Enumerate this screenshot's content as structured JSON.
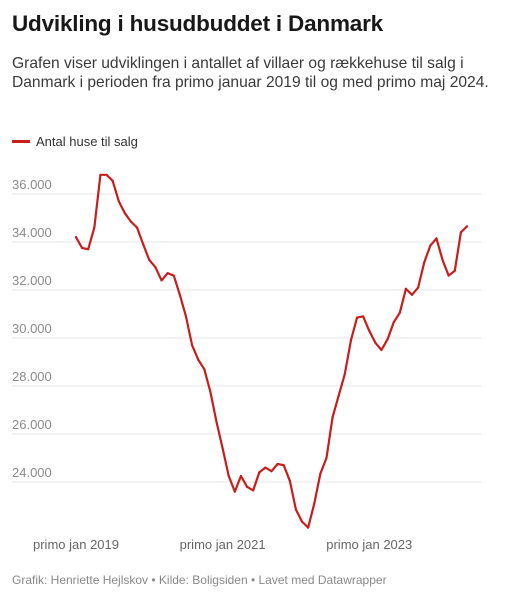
{
  "title": "Udvikling i husudbuddet i Danmark",
  "description": "Grafen viser udviklingen i antallet af villaer og rækkehuse til salg i Danmark i perioden fra primo januar 2019 til og med primo maj 2024.",
  "footer": "Grafik: Henriette Hejlskov • Kilde: Boligsiden • Lavet med Datawrapper",
  "colors": {
    "line": "#c71e1d",
    "grid": "#e4e4e4"
  },
  "chart_data": {
    "type": "line",
    "title": "Udvikling i husudbuddet i Danmark",
    "xlabel": "",
    "ylabel": "",
    "ylim": [
      22000,
      37000
    ],
    "y_ticks": [
      24000,
      26000,
      28000,
      30000,
      32000,
      34000,
      36000
    ],
    "y_tick_labels": [
      "24.000",
      "26.000",
      "28.000",
      "30.000",
      "32.000",
      "34.000",
      "36.000"
    ],
    "x_ticks": [
      "2019-01",
      "2021-01",
      "2023-01"
    ],
    "x_tick_labels": [
      "primo jan 2019",
      "primo jan 2021",
      "primo jan 2023"
    ],
    "grid": true,
    "legend_position": "top-left",
    "series": [
      {
        "name": "Antal huse til salg",
        "color": "#c71e1d",
        "x": [
          "2019-01",
          "2019-02",
          "2019-03",
          "2019-04",
          "2019-05",
          "2019-06",
          "2019-07",
          "2019-08",
          "2019-09",
          "2019-10",
          "2019-11",
          "2019-12",
          "2020-01",
          "2020-02",
          "2020-03",
          "2020-04",
          "2020-05",
          "2020-06",
          "2020-07",
          "2020-08",
          "2020-09",
          "2020-10",
          "2020-11",
          "2020-12",
          "2021-01",
          "2021-02",
          "2021-03",
          "2021-04",
          "2021-05",
          "2021-06",
          "2021-07",
          "2021-08",
          "2021-09",
          "2021-10",
          "2021-11",
          "2021-12",
          "2022-01",
          "2022-02",
          "2022-03",
          "2022-04",
          "2022-05",
          "2022-06",
          "2022-07",
          "2022-08",
          "2022-09",
          "2022-10",
          "2022-11",
          "2022-12",
          "2023-01",
          "2023-02",
          "2023-03",
          "2023-04",
          "2023-05",
          "2023-06",
          "2023-07",
          "2023-08",
          "2023-09",
          "2023-10",
          "2023-11",
          "2023-12",
          "2024-01",
          "2024-02",
          "2024-03",
          "2024-04",
          "2024-05"
        ],
        "values": [
          34200,
          33750,
          33700,
          34600,
          36800,
          36800,
          36550,
          35700,
          35200,
          34850,
          34600,
          33900,
          33250,
          32950,
          32400,
          32700,
          32600,
          31800,
          30900,
          29700,
          29100,
          28700,
          27750,
          26500,
          25400,
          24250,
          23600,
          24250,
          23800,
          23650,
          24400,
          24600,
          24450,
          24750,
          24700,
          24050,
          22850,
          22350,
          22100,
          23100,
          24350,
          25000,
          26700,
          27600,
          28500,
          29900,
          30850,
          30900,
          30300,
          29800,
          29500,
          29950,
          30650,
          31050,
          32050,
          31800,
          32100,
          33150,
          33850,
          34150,
          33250,
          32600,
          32800,
          34400,
          34650
        ]
      }
    ]
  }
}
